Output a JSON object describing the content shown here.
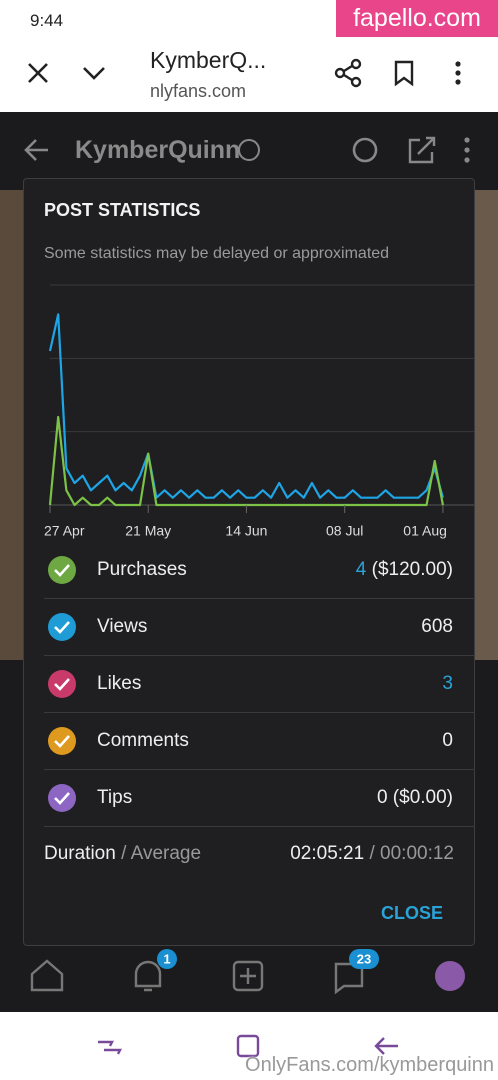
{
  "status_bar": {
    "time": "9:44"
  },
  "watermark_top": "fapello.com",
  "browser": {
    "title": "KymberQ...",
    "url": "nlyfans.com"
  },
  "profile_header": {
    "name": "KymberQuinn"
  },
  "modal": {
    "title": "POST STATISTICS",
    "subtitle": "Some statistics may be delayed or approximated",
    "chart": {
      "type": "line",
      "x": [
        0,
        2,
        4,
        6,
        8,
        10,
        12,
        14,
        16,
        18,
        20,
        22,
        24,
        26,
        28,
        30,
        32,
        34,
        36,
        38,
        40,
        42,
        44,
        46,
        48,
        50,
        52,
        54,
        56,
        58,
        60,
        62,
        64,
        66,
        68,
        70,
        72,
        74,
        76,
        78,
        80,
        82,
        84,
        86,
        88,
        90,
        92,
        94,
        96
      ],
      "xlim": [
        0,
        97
      ],
      "xticks": [
        {
          "value": 0,
          "label": "27 Apr"
        },
        {
          "value": 24,
          "label": "21 May"
        },
        {
          "value": 48,
          "label": "14 Jun"
        },
        {
          "value": 72,
          "label": "08 Jul"
        },
        {
          "value": 96,
          "label": "01 Aug"
        }
      ],
      "ylim": [
        0,
        3
      ],
      "yticks": [
        0,
        1,
        2,
        3
      ],
      "grid": true,
      "series": [
        {
          "name": "Views",
          "color": "#1ea5e6",
          "values": [
            2.1,
            2.6,
            0.5,
            0.3,
            0.4,
            0.2,
            0.3,
            0.4,
            0.2,
            0.3,
            0.2,
            0.4,
            0.7,
            0.1,
            0.2,
            0.1,
            0.2,
            0.1,
            0.2,
            0.1,
            0.1,
            0.2,
            0.1,
            0.2,
            0.1,
            0.1,
            0.2,
            0.1,
            0.3,
            0.1,
            0.2,
            0.1,
            0.3,
            0.1,
            0.2,
            0.1,
            0.1,
            0.2,
            0.1,
            0.1,
            0.1,
            0.2,
            0.1,
            0.1,
            0.1,
            0.1,
            0.2,
            0.5,
            0.1
          ]
        },
        {
          "name": "Purchases",
          "color": "#7cc246",
          "values": [
            0,
            1.2,
            0.2,
            0,
            0.1,
            0,
            0,
            0.1,
            0,
            0,
            0,
            0,
            0.7,
            0,
            0,
            0,
            0,
            0,
            0,
            0,
            0,
            0,
            0,
            0,
            0,
            0,
            0,
            0,
            0,
            0,
            0,
            0,
            0,
            0,
            0,
            0,
            0,
            0,
            0,
            0,
            0,
            0,
            0,
            0,
            0,
            0,
            0,
            0.6,
            0
          ]
        }
      ]
    },
    "rows": [
      {
        "label": "Purchases",
        "count": 4,
        "amount": "($120.00)",
        "color": "#6ea842"
      },
      {
        "label": "Views",
        "count": 608,
        "color": "#1f9bd6"
      },
      {
        "label": "Likes",
        "count": 3,
        "color": "#c83a6a"
      },
      {
        "label": "Comments",
        "count": 0,
        "color": "#de9a1f"
      },
      {
        "label": "Tips",
        "count": 0,
        "amount": "($0.00)",
        "color": "#8d66c4"
      }
    ],
    "duration": {
      "label": "Duration",
      "sep": "/",
      "avg_label": "Average",
      "total": "02:05:21",
      "average": "00:00:12"
    },
    "close": "CLOSE"
  },
  "bottom_nav": {
    "notifications_badge": 1,
    "messages_badge": 23
  },
  "watermark_bottom": "OnlyFans.com/kymberquinn"
}
